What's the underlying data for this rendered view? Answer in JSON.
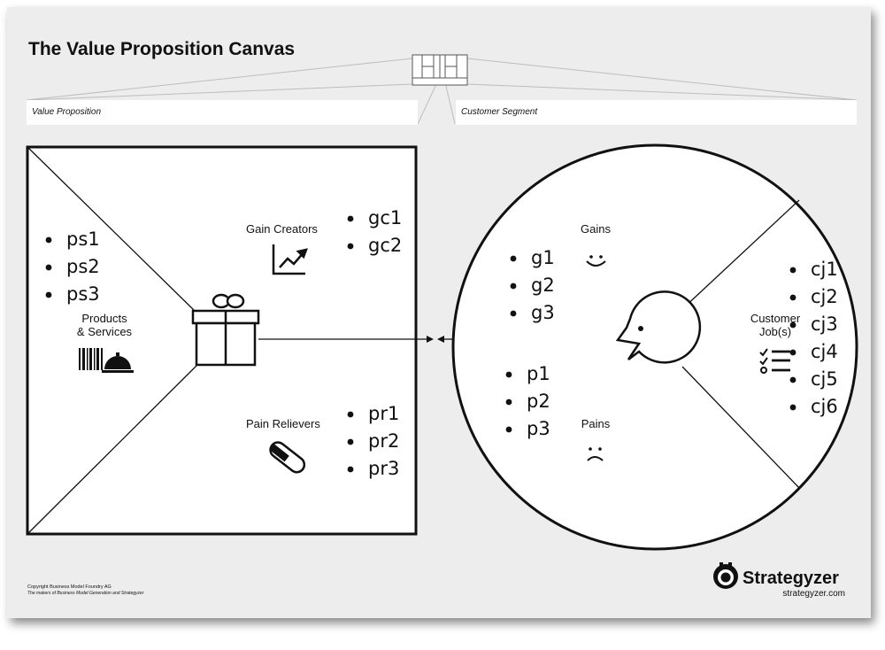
{
  "title": "The Value Proposition Canvas",
  "value_proposition": {
    "header": "Value Proposition",
    "products_services": {
      "label_line1": "Products",
      "label_line2": "& Services",
      "items": [
        "ps1",
        "ps2",
        "ps3"
      ],
      "icon": "barcode-cloche-icon"
    },
    "gain_creators": {
      "label": "Gain Creators",
      "items": [
        "gc1",
        "gc2"
      ],
      "icon": "rising-chart-icon"
    },
    "pain_relievers": {
      "label": "Pain Relievers",
      "items": [
        "pr1",
        "pr2",
        "pr3"
      ],
      "icon": "pill-icon"
    },
    "center_icon": "gift-icon"
  },
  "customer_segment": {
    "header": "Customer Segment",
    "gains": {
      "label": "Gains",
      "items": [
        "g1",
        "g2",
        "g3"
      ],
      "icon": "smiley-icon"
    },
    "pains": {
      "label": "Pains",
      "items": [
        "p1",
        "p2",
        "p3"
      ],
      "icon": "sad-face-icon"
    },
    "customer_jobs": {
      "label_line1": "Customer",
      "label_line2": "Job(s)",
      "items": [
        "cj1",
        "cj2",
        "cj3",
        "cj4",
        "cj5",
        "cj6"
      ],
      "icon": "checklist-icon"
    },
    "center_icon": "face-profile-icon"
  },
  "footer": {
    "copyright": "Copyright Business Model Foundry AG",
    "tagline": "The makers of Business Model Generation and Strategyzer",
    "brand": "Strategyzer",
    "brand_url": "strategyzer.com",
    "brand_icon": "strategyzer-logo-icon"
  }
}
